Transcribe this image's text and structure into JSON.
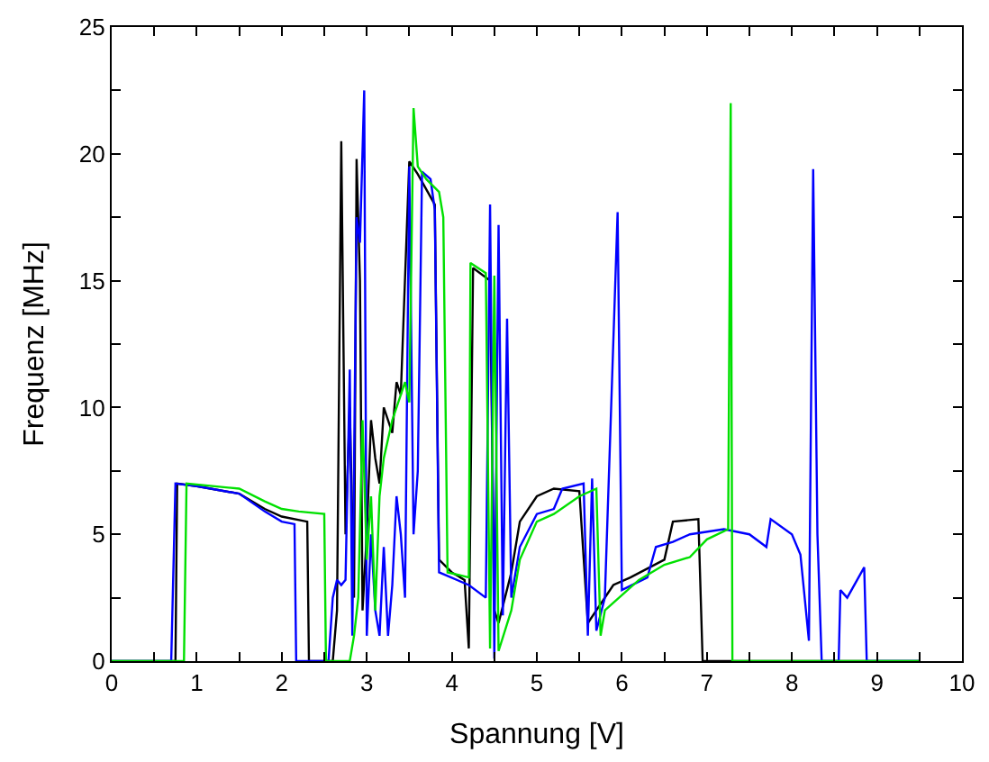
{
  "chart_data": {
    "type": "line",
    "xlabel": "Spannung [V]",
    "ylabel": "Frequenz [MHz]",
    "xlim": [
      0,
      10
    ],
    "ylim": [
      0,
      25
    ],
    "xticks": [
      0,
      {
        "value": 0.5,
        "label": null
      },
      1,
      {
        "value": 1.5,
        "label": null
      },
      2,
      {
        "value": 2.5,
        "label": null
      },
      3,
      {
        "value": 3.5,
        "label": null
      },
      4,
      {
        "value": 4.5,
        "label": null
      },
      5,
      {
        "value": 5.5,
        "label": null
      },
      6,
      {
        "value": 6.5,
        "label": null
      },
      7,
      {
        "value": 7.5,
        "label": null
      },
      8,
      {
        "value": 8.5,
        "label": null
      },
      9,
      {
        "value": 9.5,
        "label": null
      },
      10
    ],
    "yticks": [
      0,
      {
        "value": 2.5,
        "label": null
      },
      5,
      {
        "value": 7.5,
        "label": null
      },
      10,
      {
        "value": 12.5,
        "label": null
      },
      15,
      {
        "value": 17.5,
        "label": null
      },
      20,
      {
        "value": 22.5,
        "label": null
      },
      25
    ],
    "marker": "none",
    "line_style": "solid",
    "series": [
      {
        "color": "#000000",
        "x": [
          0,
          0.75,
          0.77,
          1.0,
          1.5,
          1.8,
          2.0,
          2.3,
          2.32,
          2.6,
          2.65,
          2.7,
          2.75,
          2.8,
          2.85,
          2.88,
          2.92,
          2.95,
          3.0,
          3.05,
          3.1,
          3.15,
          3.2,
          3.3,
          3.35,
          3.4,
          3.5,
          3.6,
          3.8,
          3.85,
          4.0,
          4.15,
          4.2,
          4.25,
          4.45,
          4.5,
          4.55,
          4.7,
          4.8,
          5.0,
          5.2,
          5.5,
          5.6,
          5.7,
          5.9,
          6.1,
          6.5,
          6.6,
          6.9,
          6.95,
          9.5
        ],
        "values": [
          0,
          0,
          7.0,
          6.9,
          6.6,
          6.0,
          5.7,
          5.5,
          0,
          0,
          2.0,
          20.5,
          5,
          10,
          2.5,
          19.8,
          15,
          2,
          5,
          9.5,
          8,
          7,
          10,
          9,
          11,
          10.5,
          19.7,
          19.2,
          18,
          4,
          3.5,
          3.2,
          0.5,
          15.5,
          15,
          2,
          1.5,
          3.5,
          5.5,
          6.5,
          6.8,
          6.7,
          1.5,
          2.0,
          3.0,
          3.3,
          4.0,
          5.5,
          5.6,
          0,
          0
        ]
      },
      {
        "color": "#0000ff",
        "x": [
          0,
          0.7,
          0.75,
          1.0,
          1.5,
          1.8,
          2.0,
          2.15,
          2.17,
          2.55,
          2.6,
          2.65,
          2.7,
          2.75,
          2.8,
          2.83,
          2.88,
          2.92,
          2.97,
          3.0,
          3.05,
          3.1,
          3.15,
          3.2,
          3.25,
          3.3,
          3.35,
          3.4,
          3.45,
          3.5,
          3.55,
          3.6,
          3.65,
          3.75,
          3.8,
          3.85,
          4.2,
          4.4,
          4.45,
          4.5,
          4.55,
          4.6,
          4.65,
          4.7,
          4.8,
          5.0,
          5.2,
          5.3,
          5.55,
          5.6,
          5.65,
          5.7,
          5.8,
          5.95,
          6.0,
          6.3,
          6.4,
          6.6,
          6.8,
          7.2,
          7.5,
          7.7,
          7.75,
          8.0,
          8.1,
          8.2,
          8.25,
          8.3,
          8.35,
          8.55,
          8.57,
          8.65,
          8.85,
          8.88,
          9.5
        ],
        "values": [
          0,
          0,
          7.0,
          6.9,
          6.6,
          5.9,
          5.5,
          5.4,
          0,
          0,
          2.5,
          3.2,
          3.0,
          3.2,
          11.5,
          1,
          17.5,
          16.5,
          22.5,
          1,
          5,
          2,
          1,
          4.5,
          1,
          3,
          6.5,
          5,
          2.5,
          19.5,
          5,
          7.5,
          19.3,
          19,
          17.8,
          3.5,
          3.0,
          2.5,
          18,
          0.1,
          17.2,
          1.8,
          13.5,
          2.5,
          4.5,
          5.8,
          6.0,
          6.8,
          7.0,
          1.0,
          7.2,
          1.2,
          2.5,
          17.7,
          2.8,
          3.3,
          4.5,
          4.7,
          5.0,
          5.2,
          5.0,
          4.5,
          5.6,
          5.0,
          4.2,
          0.8,
          19.4,
          5,
          0,
          0,
          2.8,
          2.5,
          3.7,
          0,
          0
        ]
      },
      {
        "color": "#00e000",
        "x": [
          0,
          0.85,
          0.88,
          1.5,
          1.8,
          2.0,
          2.2,
          2.5,
          2.52,
          2.8,
          2.85,
          2.9,
          2.95,
          3.0,
          3.05,
          3.1,
          3.15,
          3.2,
          3.3,
          3.4,
          3.45,
          3.5,
          3.55,
          3.6,
          3.7,
          3.85,
          3.9,
          3.95,
          4.2,
          4.22,
          4.4,
          4.45,
          4.5,
          4.55,
          4.7,
          4.8,
          5.0,
          5.2,
          5.5,
          5.7,
          5.75,
          5.8,
          6.2,
          6.5,
          6.8,
          7.0,
          7.25,
          7.28,
          7.3,
          9.5
        ],
        "values": [
          0,
          0,
          7.0,
          6.8,
          6.3,
          6.0,
          5.9,
          5.8,
          0,
          0,
          1,
          2.5,
          9.5,
          4,
          6.5,
          2,
          6.5,
          8,
          9.5,
          10.5,
          11,
          10.2,
          21.8,
          19.5,
          19,
          18.5,
          17.5,
          3.5,
          3.3,
          15.7,
          15.3,
          0.5,
          15.2,
          0.4,
          2.0,
          4.0,
          5.5,
          5.8,
          6.5,
          6.8,
          1,
          2,
          3.2,
          3.8,
          4.1,
          4.8,
          5.2,
          22,
          0,
          0
        ]
      }
    ]
  }
}
